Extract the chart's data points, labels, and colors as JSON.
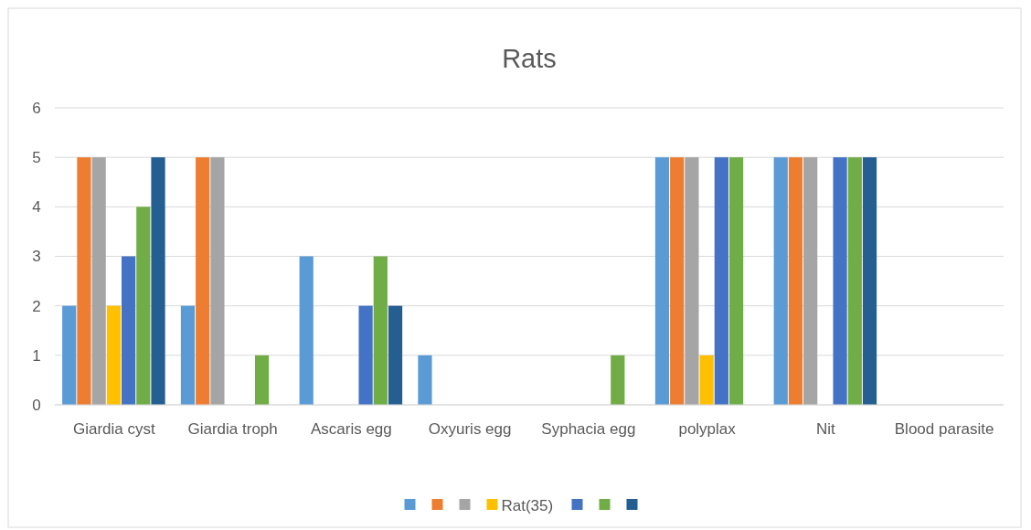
{
  "chart_data": {
    "type": "bar",
    "title": "Rats",
    "categories": [
      "Giardia cyst",
      "Giardia troph",
      "Ascaris egg",
      "Oxyuris egg",
      "Syphacia egg",
      "polyplax",
      "Nit",
      "Blood parasite"
    ],
    "series": [
      {
        "color": "#5b9bd5",
        "values": [
          2,
          2,
          3,
          1,
          0,
          5,
          5,
          0
        ]
      },
      {
        "color": "#ed7d31",
        "values": [
          5,
          5,
          0,
          0,
          0,
          5,
          5,
          0
        ]
      },
      {
        "color": "#a5a5a5",
        "values": [
          5,
          5,
          0,
          0,
          0,
          5,
          5,
          0
        ]
      },
      {
        "name": "Rat(35)",
        "color": "#ffc000",
        "values": [
          2,
          0,
          0,
          0,
          0,
          1,
          0,
          0
        ]
      },
      {
        "color": "#4472c4",
        "values": [
          3,
          0,
          2,
          0,
          0,
          5,
          5,
          0
        ]
      },
      {
        "color": "#70ad47",
        "values": [
          4,
          1,
          3,
          0,
          1,
          5,
          5,
          0
        ]
      },
      {
        "color": "#255e91",
        "values": [
          5,
          0,
          2,
          0,
          0,
          0,
          5,
          0
        ]
      }
    ],
    "ylim": [
      0,
      6
    ],
    "yticks": [
      0,
      1,
      2,
      3,
      4,
      5,
      6
    ],
    "grid": "y",
    "legend": "bottom"
  }
}
